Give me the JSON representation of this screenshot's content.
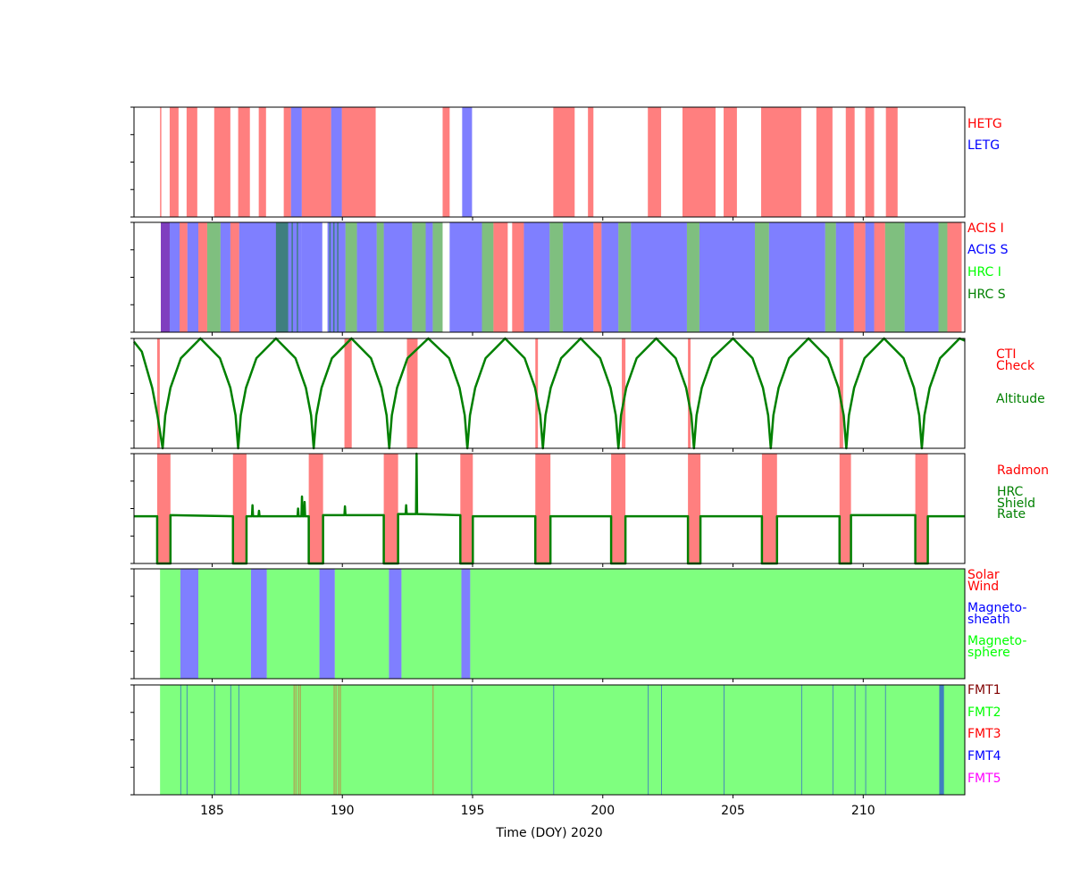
{
  "x_axis": {
    "label": "Time (DOY) 2020",
    "xlim": [
      182,
      213.9
    ],
    "xticks": [
      185,
      190,
      195,
      200,
      205,
      210
    ]
  },
  "chart_data": [
    {
      "type": "timeline",
      "series": [
        {
          "name": "HETG",
          "color": "#ff0000",
          "intervals": [
            [
              183.0,
              183.05
            ],
            [
              183.37,
              183.71
            ],
            [
              184.02,
              184.43
            ],
            [
              185.08,
              185.7
            ],
            [
              186.0,
              186.45
            ],
            [
              186.79,
              187.07
            ],
            [
              187.75,
              188.03
            ],
            [
              188.44,
              189.57
            ],
            [
              189.98,
              191.28
            ],
            [
              193.85,
              194.12
            ],
            [
              198.1,
              198.92
            ],
            [
              199.43,
              199.64
            ],
            [
              201.73,
              202.24
            ],
            [
              203.06,
              204.33
            ],
            [
              204.64,
              205.15
            ],
            [
              206.08,
              207.62
            ],
            [
              208.2,
              208.82
            ],
            [
              209.33,
              209.67
            ],
            [
              210.08,
              210.42
            ],
            [
              210.87,
              211.32
            ]
          ]
        },
        {
          "name": "LETG",
          "color": "#0000ff",
          "intervals": [
            [
              188.03,
              188.44
            ],
            [
              189.57,
              189.98
            ],
            [
              194.6,
              194.98
            ]
          ]
        }
      ]
    },
    {
      "type": "timeline",
      "series": [
        {
          "name": "ACIS I",
          "color": "#ff0000",
          "intervals": [
            [
              183.03,
              183.37
            ],
            [
              183.75,
              184.05
            ],
            [
              184.47,
              184.81
            ],
            [
              185.7,
              186.04
            ],
            [
              195.8,
              196.35
            ],
            [
              196.52,
              196.97
            ],
            [
              199.64,
              199.95
            ],
            [
              209.64,
              210.08
            ],
            [
              210.42,
              210.84
            ],
            [
              213.23,
              213.78
            ]
          ]
        },
        {
          "name": "ACIS S",
          "color": "#0000ff",
          "intervals": [
            [
              183.03,
              183.75
            ],
            [
              184.05,
              184.47
            ],
            [
              185.32,
              185.7
            ],
            [
              186.04,
              188.44
            ],
            [
              188.44,
              189.23
            ],
            [
              189.43,
              190.12
            ],
            [
              190.56,
              191.32
            ],
            [
              191.59,
              192.68
            ],
            [
              193.2,
              193.47
            ],
            [
              194.12,
              195.36
            ],
            [
              196.97,
              197.96
            ],
            [
              198.47,
              199.64
            ],
            [
              199.95,
              200.6
            ],
            [
              201.08,
              203.23
            ],
            [
              203.71,
              205.84
            ],
            [
              206.38,
              208.54
            ],
            [
              208.95,
              209.64
            ],
            [
              210.08,
              210.42
            ],
            [
              211.59,
              212.89
            ]
          ]
        },
        {
          "name": "HRC I",
          "color": "#00ff00",
          "intervals": []
        },
        {
          "name": "HRC S",
          "color": "#008000",
          "intervals": [
            [
              184.81,
              185.32
            ],
            [
              187.45,
              187.92
            ],
            [
              188.05,
              188.1
            ],
            [
              188.25,
              188.3
            ],
            [
              189.5,
              189.55
            ],
            [
              189.65,
              189.7
            ],
            [
              189.8,
              189.85
            ],
            [
              190.12,
              190.56
            ],
            [
              191.32,
              191.59
            ],
            [
              192.68,
              193.2
            ],
            [
              193.47,
              193.85
            ],
            [
              195.36,
              195.8
            ],
            [
              197.96,
              198.47
            ],
            [
              200.6,
              201.08
            ],
            [
              203.23,
              203.71
            ],
            [
              205.84,
              206.38
            ],
            [
              208.54,
              208.95
            ],
            [
              210.84,
              211.59
            ],
            [
              212.89,
              213.23
            ]
          ]
        }
      ]
    },
    {
      "type": "timeline",
      "ylim": [
        0,
        1
      ],
      "series": [
        {
          "name": "CTI\nCheck",
          "color": "#ff0000",
          "intervals": [
            [
              182.89,
              182.99
            ],
            [
              190.08,
              190.36
            ],
            [
              192.48,
              192.89
            ],
            [
              197.41,
              197.51
            ],
            [
              200.73,
              200.87
            ],
            [
              203.27,
              203.37
            ],
            [
              209.09,
              209.23
            ]
          ]
        },
        {
          "name": "Altitude",
          "color": "#008000",
          "x": [
            182,
            182.3,
            182.7,
            182.9,
            183.1,
            183.2,
            183.4,
            183.8,
            184.55,
            185.3,
            185.7,
            185.9,
            186.0,
            186.1,
            186.3,
            186.7,
            187.45,
            188.2,
            188.6,
            188.8,
            188.9,
            189.0,
            189.2,
            189.6,
            190.35,
            191.1,
            191.5,
            191.7,
            191.8,
            191.9,
            192.1,
            192.5,
            193.3,
            194.1,
            194.5,
            194.7,
            194.8,
            194.9,
            195.1,
            195.5,
            196.25,
            197.0,
            197.4,
            197.6,
            197.7,
            197.8,
            198.0,
            198.4,
            199.15,
            199.9,
            200.3,
            200.5,
            200.6,
            200.7,
            200.9,
            201.3,
            202.05,
            202.8,
            203.2,
            203.4,
            203.5,
            203.6,
            203.8,
            204.2,
            205.0,
            205.75,
            206.15,
            206.35,
            206.45,
            206.55,
            206.75,
            207.15,
            207.9,
            208.65,
            209.05,
            209.25,
            209.35,
            209.45,
            209.65,
            210.05,
            210.8,
            211.55,
            211.95,
            212.15,
            212.25,
            212.35,
            212.55,
            212.95,
            213.7,
            213.9
          ],
          "values": [
            0.97,
            0.88,
            0.55,
            0.3,
            0,
            0.3,
            0.55,
            0.82,
            1,
            0.82,
            0.55,
            0.3,
            0,
            0.3,
            0.55,
            0.82,
            1,
            0.82,
            0.55,
            0.3,
            0,
            0.3,
            0.55,
            0.82,
            1,
            0.82,
            0.55,
            0.3,
            0,
            0.3,
            0.55,
            0.82,
            1,
            0.82,
            0.55,
            0.3,
            0,
            0.3,
            0.55,
            0.82,
            1,
            0.82,
            0.55,
            0.3,
            0,
            0.3,
            0.55,
            0.82,
            1,
            0.82,
            0.55,
            0.3,
            0,
            0.3,
            0.55,
            0.82,
            1,
            0.82,
            0.55,
            0.3,
            0,
            0.3,
            0.55,
            0.82,
            1,
            0.82,
            0.55,
            0.3,
            0,
            0.3,
            0.55,
            0.82,
            1,
            0.82,
            0.55,
            0.3,
            0,
            0.3,
            0.55,
            0.82,
            1,
            0.82,
            0.55,
            0.3,
            0,
            0.3,
            0.55,
            0.82,
            1,
            0.98
          ]
        }
      ]
    },
    {
      "type": "timeline",
      "ylim": [
        0,
        1
      ],
      "series": [
        {
          "name": "Radmon",
          "color": "#ff0000",
          "intervals": [
            [
              182.89,
              183.4
            ],
            [
              185.8,
              186.32
            ],
            [
              188.71,
              189.26
            ],
            [
              191.59,
              192.14
            ],
            [
              194.53,
              195.01
            ],
            [
              197.41,
              197.99
            ],
            [
              200.32,
              200.87
            ],
            [
              203.27,
              203.75
            ],
            [
              206.11,
              206.69
            ],
            [
              209.09,
              209.53
            ],
            [
              212.0,
              212.48
            ]
          ]
        },
        {
          "name": "HRC\nShield\nRate",
          "color": "#008000",
          "x": [
            182,
            182.89,
            182.89,
            183.4,
            183.4,
            185.8,
            185.8,
            186.32,
            186.32,
            186.53,
            186.55,
            186.57,
            186.78,
            186.8,
            186.82,
            188.28,
            188.3,
            188.32,
            188.43,
            188.45,
            188.47,
            188.53,
            188.55,
            188.57,
            188.71,
            188.71,
            189.26,
            189.26,
            190.08,
            190.1,
            190.12,
            191.59,
            191.59,
            192.14,
            192.14,
            192.43,
            192.45,
            192.47,
            192.83,
            192.85,
            192.87,
            194.53,
            194.53,
            195.01,
            195.01,
            197.41,
            197.41,
            197.99,
            197.99,
            200.32,
            200.32,
            200.87,
            200.87,
            203.27,
            203.27,
            203.75,
            203.75,
            206.11,
            206.11,
            206.69,
            206.69,
            209.09,
            209.09,
            209.53,
            209.53,
            212.0,
            212.0,
            212.48,
            212.48,
            213.9
          ],
          "values": [
            0.43,
            0.43,
            0,
            0,
            0.44,
            0.43,
            0,
            0,
            0.43,
            0.43,
            0.53,
            0.43,
            0.43,
            0.48,
            0.43,
            0.43,
            0.5,
            0.43,
            0.43,
            0.61,
            0.43,
            0.43,
            0.56,
            0.43,
            0.43,
            0,
            0,
            0.44,
            0.44,
            0.52,
            0.44,
            0.44,
            0,
            0,
            0.45,
            0.45,
            0.53,
            0.45,
            0.45,
            1,
            0.45,
            0.44,
            0,
            0,
            0.43,
            0.43,
            0,
            0,
            0.43,
            0.43,
            0,
            0,
            0.43,
            0.43,
            0,
            0,
            0.43,
            0.43,
            0,
            0,
            0.43,
            0.43,
            0,
            0,
            0.44,
            0.44,
            0,
            0,
            0.43,
            0.43
          ]
        }
      ]
    },
    {
      "type": "timeline",
      "series": [
        {
          "name": "Solar\nWind",
          "color": "#ff0000",
          "intervals": []
        },
        {
          "name": "Magneto-\nsheath",
          "color": "#0000ff",
          "intervals": [
            [
              183.78,
              184.47
            ],
            [
              186.49,
              187.1
            ],
            [
              189.12,
              189.71
            ],
            [
              191.79,
              192.27
            ],
            [
              194.57,
              194.91
            ]
          ]
        },
        {
          "name": "Magneto-\nsphere",
          "color": "#00ff00",
          "intervals": [
            [
              183.0,
              183.78
            ],
            [
              184.47,
              186.49
            ],
            [
              187.1,
              189.12
            ],
            [
              189.71,
              191.79
            ],
            [
              192.27,
              194.57
            ],
            [
              194.91,
              213.9
            ]
          ]
        }
      ]
    },
    {
      "type": "timeline",
      "series": [
        {
          "name": "FMT1",
          "color": "#800000",
          "intervals": []
        },
        {
          "name": "FMT2",
          "color": "#00ff00",
          "intervals": [
            [
              183.0,
              213.9
            ]
          ]
        },
        {
          "name": "FMT3",
          "color": "#ff0000",
          "intervals": [
            [
              188.13,
              188.16
            ],
            [
              188.2,
              188.23
            ],
            [
              188.3,
              188.33
            ],
            [
              188.37,
              188.4
            ],
            [
              189.67,
              189.7
            ],
            [
              189.74,
              189.77
            ],
            [
              189.84,
              189.87
            ],
            [
              189.91,
              189.94
            ],
            [
              193.47,
              193.5
            ]
          ]
        },
        {
          "name": "FMT4",
          "color": "#0000ff",
          "intervals": [
            [
              183.78,
              183.81
            ],
            [
              184.02,
              184.05
            ],
            [
              185.08,
              185.11
            ],
            [
              185.7,
              185.73
            ],
            [
              186.01,
              186.04
            ],
            [
              194.95,
              194.98
            ],
            [
              198.1,
              198.13
            ],
            [
              201.73,
              201.76
            ],
            [
              202.24,
              202.27
            ],
            [
              204.64,
              204.67
            ],
            [
              207.62,
              207.65
            ],
            [
              208.82,
              208.85
            ],
            [
              209.67,
              209.7
            ],
            [
              210.08,
              210.11
            ],
            [
              210.84,
              210.87
            ],
            [
              212.92,
              213.1
            ]
          ]
        },
        {
          "name": "FMT5",
          "color": "#ff00ff",
          "intervals": []
        }
      ]
    }
  ]
}
